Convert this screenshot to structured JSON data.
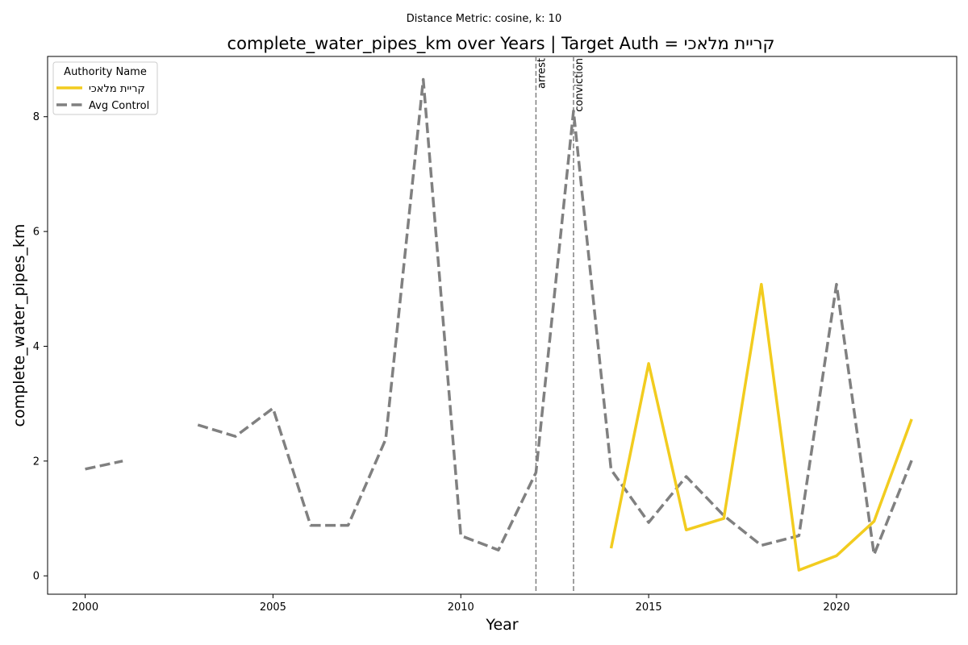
{
  "chart_data": {
    "type": "line",
    "suptitle": "Distance Metric: cosine, k: 10",
    "title": "complete_water_pipes_km over Years | Target Auth = קריית מלאכי",
    "xlabel": "Year",
    "ylabel": "complete_water_pipes_km",
    "xlim": [
      1999.0,
      2023.2
    ],
    "ylim": [
      -0.32,
      9.05
    ],
    "xticks": [
      2000,
      2005,
      2010,
      2015,
      2020
    ],
    "yticks": [
      0,
      2,
      4,
      6,
      8
    ],
    "grid": false,
    "legend": {
      "title": "Authority Name",
      "placement": "top-left"
    },
    "series": [
      {
        "name": "קריית מלאכי",
        "color": "#f2cc1f",
        "style": "solid",
        "points": [
          [
            2014,
            0.48
          ],
          [
            2015,
            3.7
          ],
          [
            2016,
            0.8
          ],
          [
            2017,
            1.0
          ],
          [
            2018,
            5.08
          ],
          [
            2019,
            0.1
          ],
          [
            2020,
            0.35
          ],
          [
            2021,
            0.95
          ],
          [
            2022,
            2.73
          ]
        ]
      },
      {
        "name": "Avg Control",
        "color": "#808080",
        "style": "dashed",
        "points": [
          [
            2000,
            1.86
          ],
          [
            2001,
            2.0
          ],
          [
            2002,
            null
          ],
          [
            2003,
            2.63
          ],
          [
            2004,
            2.43
          ],
          [
            2005,
            2.92
          ],
          [
            2006,
            0.88
          ],
          [
            2007,
            0.88
          ],
          [
            2008,
            2.38
          ],
          [
            2009,
            8.65
          ],
          [
            2010,
            0.7
          ],
          [
            2011,
            0.45
          ],
          [
            2012,
            1.8
          ],
          [
            2013,
            8.1
          ],
          [
            2014,
            1.85
          ],
          [
            2015,
            0.93
          ],
          [
            2016,
            1.73
          ],
          [
            2017,
            1.05
          ],
          [
            2018,
            0.53
          ],
          [
            2019,
            0.7
          ],
          [
            2020,
            5.08
          ],
          [
            2021,
            0.37
          ],
          [
            2022,
            2.01
          ]
        ]
      }
    ],
    "events": [
      {
        "label": "arrest",
        "x": 2012
      },
      {
        "label": "conviction",
        "x": 2013
      }
    ]
  }
}
